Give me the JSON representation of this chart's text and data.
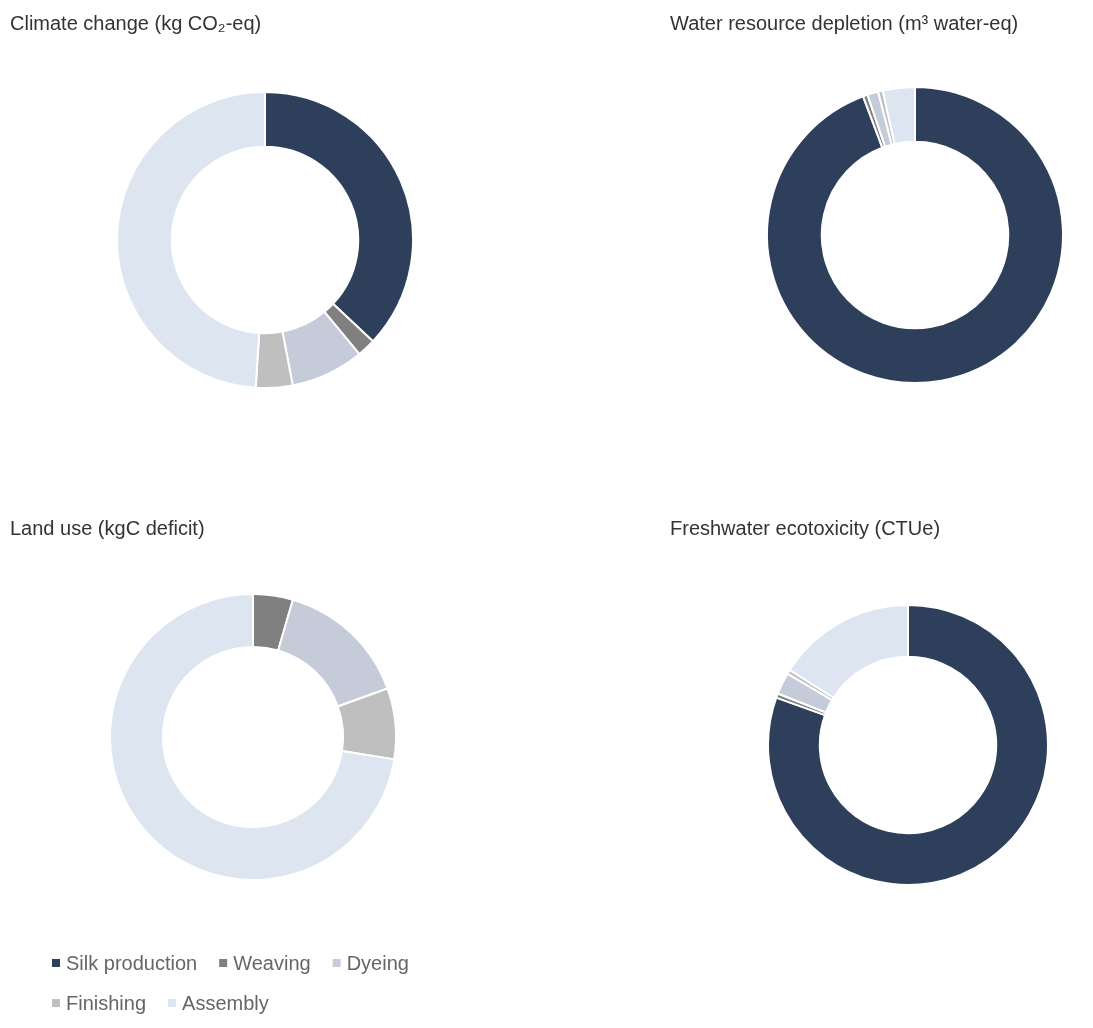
{
  "chart_data": [
    {
      "type": "donut",
      "title": "Climate change (kg CO₂-eq)",
      "categories": [
        null,
        null,
        null,
        null,
        null
      ],
      "values": [
        37,
        2,
        8,
        4,
        49
      ],
      "colors": [
        "#2e3f5c",
        "#808080",
        "#c5cbd8",
        "#bfbfbf",
        "#dde5f1"
      ],
      "legend": false
    },
    {
      "type": "donut",
      "title": "Water resource depletion (m³ water-eq)",
      "categories": [
        null,
        null,
        null,
        null,
        null
      ],
      "values": [
        94.3,
        0.5,
        1.2,
        0.5,
        3.5
      ],
      "colors": [
        "#2e3f5c",
        "#808080",
        "#c5cbd8",
        "#bfbfbf",
        "#dde5f1"
      ],
      "legend": false
    },
    {
      "type": "donut",
      "title": "Land use (kgC deficit)",
      "categories": [
        "Silk production",
        "Weaving",
        "Dyeing",
        "Finishing",
        "Assembly"
      ],
      "values": [
        0,
        4.5,
        15,
        8,
        72.5
      ],
      "colors": [
        "#2e3f5c",
        "#808080",
        "#c5cbd8",
        "#bfbfbf",
        "#dde5f1"
      ],
      "legend": "bottom"
    },
    {
      "type": "donut",
      "title": "Freshwater ecotoxicity (CTUe)",
      "categories": [
        null,
        null,
        null,
        null,
        null
      ],
      "values": [
        80.5,
        0.5,
        2.5,
        0.5,
        16
      ],
      "colors": [
        "#2e3f5c",
        "#808080",
        "#c5cbd8",
        "#bfbfbf",
        "#dde5f1"
      ],
      "legend": false
    }
  ]
}
